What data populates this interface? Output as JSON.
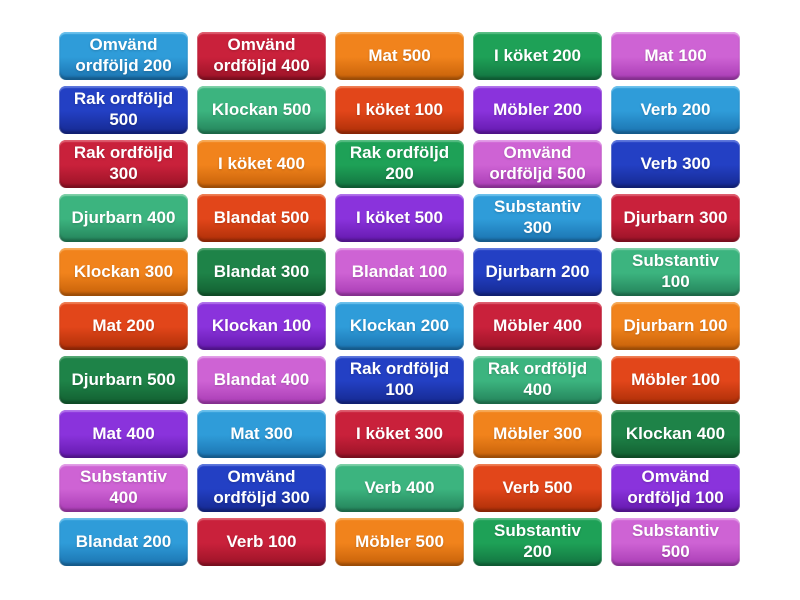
{
  "board": {
    "columns": 5,
    "rows": 10,
    "background": "#ffffff",
    "text_color": "#ffffff"
  },
  "palette": {
    "sky": {
      "base": "#2F9CD9",
      "light": "#6CC1EC",
      "dark": "#1A72AF"
    },
    "crimson": {
      "base": "#C9213B",
      "light": "#DE5F70",
      "dark": "#991226"
    },
    "orange": {
      "base": "#F1831C",
      "light": "#F6AC5A",
      "dark": "#C56008"
    },
    "green": {
      "base": "#1EA157",
      "light": "#5BBE85",
      "dark": "#127240"
    },
    "forest": {
      "base": "#1E8348",
      "light": "#56A874",
      "dark": "#125E30"
    },
    "orchid": {
      "base": "#CE63D4",
      "light": "#E29EE7",
      "dark": "#A83BB4"
    },
    "royal": {
      "base": "#2340C4",
      "light": "#5E77DC",
      "dark": "#15288F"
    },
    "seagreen": {
      "base": "#3CB47F",
      "light": "#7FD0A8",
      "dark": "#238159"
    },
    "orangered": {
      "base": "#E2461A",
      "light": "#EE7E54",
      "dark": "#AC2E07"
    },
    "violet": {
      "base": "#8A33DC",
      "light": "#B173EA",
      "dark": "#6318AC"
    }
  },
  "tiles": [
    {
      "label": "Omvänd ordföljd 200",
      "color": "sky"
    },
    {
      "label": "Omvänd ordföljd 400",
      "color": "crimson"
    },
    {
      "label": "Mat 500",
      "color": "orange"
    },
    {
      "label": "I köket 200",
      "color": "green"
    },
    {
      "label": "Mat 100",
      "color": "orchid"
    },
    {
      "label": "Rak ordföljd 500",
      "color": "royal"
    },
    {
      "label": "Klockan 500",
      "color": "seagreen"
    },
    {
      "label": "I köket 100",
      "color": "orangered"
    },
    {
      "label": "Möbler 200",
      "color": "violet"
    },
    {
      "label": "Verb 200",
      "color": "sky"
    },
    {
      "label": "Rak ordföljd 300",
      "color": "crimson"
    },
    {
      "label": "I köket 400",
      "color": "orange"
    },
    {
      "label": "Rak ordföljd 200",
      "color": "green"
    },
    {
      "label": "Omvänd ordföljd 500",
      "color": "orchid"
    },
    {
      "label": "Verb 300",
      "color": "royal"
    },
    {
      "label": "Djurbarn 400",
      "color": "seagreen"
    },
    {
      "label": "Blandat 500",
      "color": "orangered"
    },
    {
      "label": "I köket 500",
      "color": "violet"
    },
    {
      "label": "Substantiv 300",
      "color": "sky"
    },
    {
      "label": "Djurbarn 300",
      "color": "crimson"
    },
    {
      "label": "Klockan 300",
      "color": "orange"
    },
    {
      "label": "Blandat 300",
      "color": "forest"
    },
    {
      "label": "Blandat 100",
      "color": "orchid"
    },
    {
      "label": "Djurbarn 200",
      "color": "royal"
    },
    {
      "label": "Substantiv 100",
      "color": "seagreen"
    },
    {
      "label": "Mat 200",
      "color": "orangered"
    },
    {
      "label": "Klockan 100",
      "color": "violet"
    },
    {
      "label": "Klockan 200",
      "color": "sky"
    },
    {
      "label": "Möbler 400",
      "color": "crimson"
    },
    {
      "label": "Djurbarn 100",
      "color": "orange"
    },
    {
      "label": "Djurbarn 500",
      "color": "forest"
    },
    {
      "label": "Blandat 400",
      "color": "orchid"
    },
    {
      "label": "Rak ordföljd 100",
      "color": "royal"
    },
    {
      "label": "Rak ordföljd 400",
      "color": "seagreen"
    },
    {
      "label": "Möbler 100",
      "color": "orangered"
    },
    {
      "label": "Mat 400",
      "color": "violet"
    },
    {
      "label": "Mat 300",
      "color": "sky"
    },
    {
      "label": "I köket 300",
      "color": "crimson"
    },
    {
      "label": "Möbler 300",
      "color": "orange"
    },
    {
      "label": "Klockan 400",
      "color": "forest"
    },
    {
      "label": "Substantiv 400",
      "color": "orchid"
    },
    {
      "label": "Omvänd ordföljd 300",
      "color": "royal"
    },
    {
      "label": "Verb 400",
      "color": "seagreen"
    },
    {
      "label": "Verb 500",
      "color": "orangered"
    },
    {
      "label": "Omvänd ordföljd 100",
      "color": "violet"
    },
    {
      "label": "Blandat 200",
      "color": "sky"
    },
    {
      "label": "Verb 100",
      "color": "crimson"
    },
    {
      "label": "Möbler 500",
      "color": "orange"
    },
    {
      "label": "Substantiv 200",
      "color": "green"
    },
    {
      "label": "Substantiv 500",
      "color": "orchid"
    }
  ]
}
